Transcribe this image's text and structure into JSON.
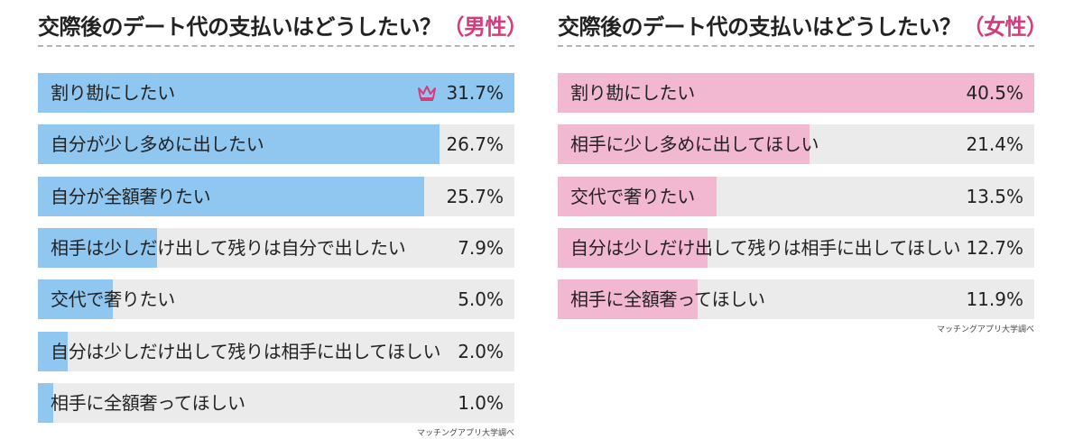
{
  "chart_data": [
    {
      "type": "bar",
      "orientation": "horizontal",
      "title": "交際後のデート代の支払いはどうしたい？",
      "subtitle": "（男性）",
      "source": "マッチングアプリ大学調べ",
      "unit": "%",
      "xlim": [
        0,
        31.7
      ],
      "fill_color": "#8fc7f0",
      "track_color": "#ebebeb",
      "accent_color": "#d63c7c",
      "categories": [
        "割り勘にしたい",
        "自分が少し多めに出したい",
        "自分が全額奢りたい",
        "相手は少しだけ出して残りは自分で出したい",
        "交代で奢りたい",
        "自分は少しだけ出して残りは相手に出してほしい",
        "相手に全額奢ってほしい"
      ],
      "values": [
        31.7,
        26.7,
        25.7,
        7.9,
        5.0,
        2.0,
        1.0
      ],
      "value_labels": [
        "31.7%",
        "26.7%",
        "25.7%",
        "7.9%",
        "5.0%",
        "2.0%",
        "1.0%"
      ],
      "top_marker_icon": "crown-icon"
    },
    {
      "type": "bar",
      "orientation": "horizontal",
      "title": "交際後のデート代の支払いはどうしたい？",
      "subtitle": "（女性）",
      "source": "マッチングアプリ大学調べ",
      "unit": "%",
      "xlim": [
        0,
        40.5
      ],
      "fill_color": "#f2b8d2",
      "track_color": "#ebebeb",
      "accent_color": "#d63c7c",
      "categories": [
        "割り勘にしたい",
        "相手に少し多めに出してほしい",
        "交代で奢りたい",
        "自分は少しだけ出して残りは相手に出してほしい",
        "相手に全額奢ってほしい"
      ],
      "values": [
        40.5,
        21.4,
        13.5,
        12.7,
        11.9
      ],
      "value_labels": [
        "40.5%",
        "21.4%",
        "13.5%",
        "12.7%",
        "11.9%"
      ]
    }
  ]
}
